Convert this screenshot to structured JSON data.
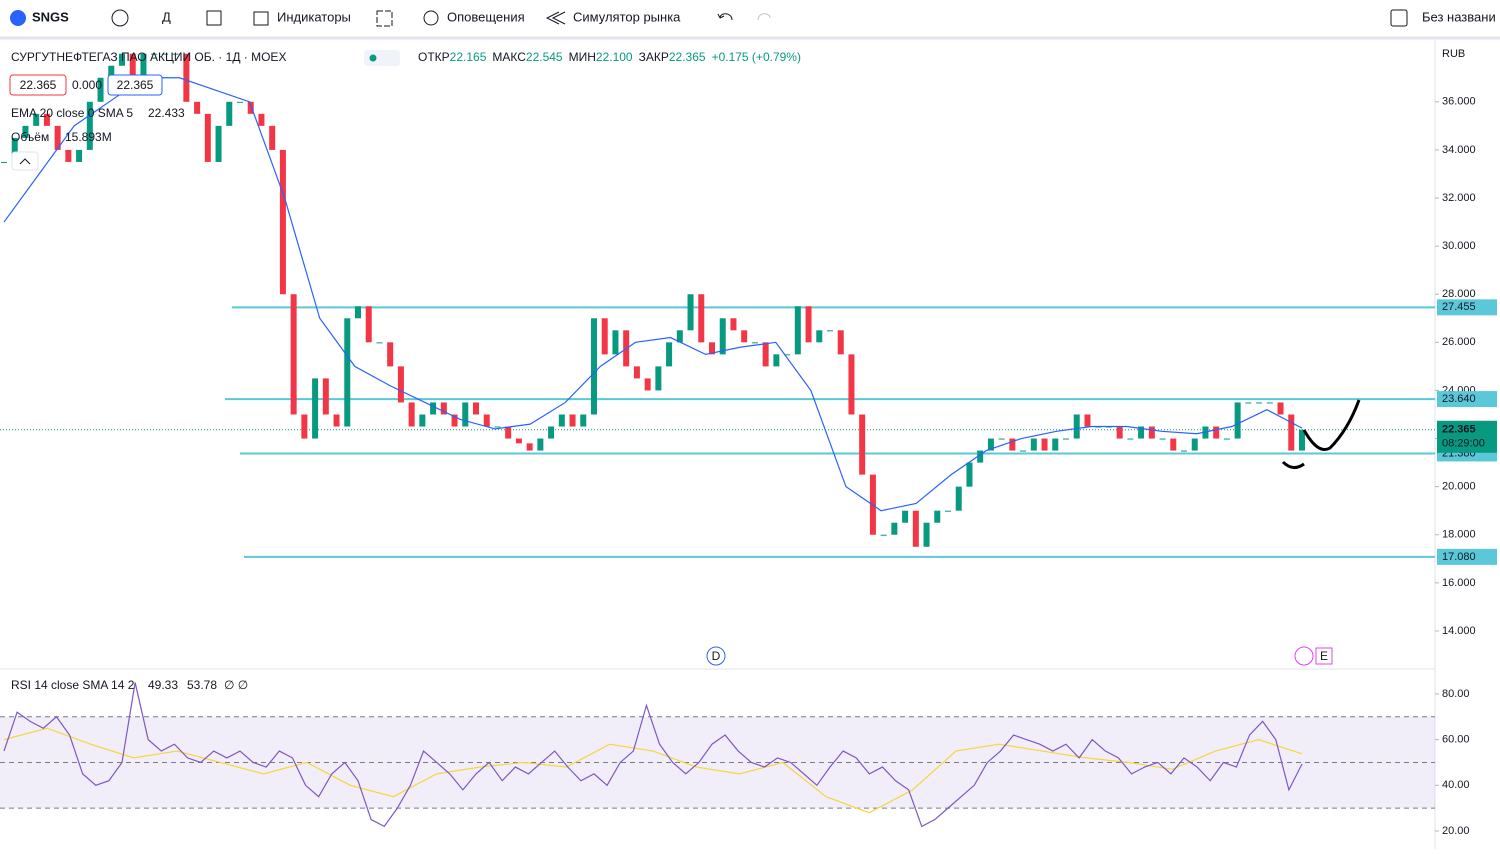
{
  "toolbar": {
    "symbol": "SNGS",
    "interval": "Д",
    "indicators": "Индикаторы",
    "alerts": "Оповещения",
    "replay": "Симулятор рынка",
    "layout": "Без названи"
  },
  "legend": {
    "title": "СУРГУТНЕФТЕГАЗ ПАО АКЦИИ ОБ. · 1Д · MOEX",
    "open_label": "ОТКР",
    "open": "22.165",
    "high_label": "МАКС",
    "high": "22.545",
    "low_label": "МИН",
    "low": "22.100",
    "close_label": "ЗАКР",
    "close": "22.365",
    "change": "+0.175 (+0.79%)",
    "bid": "22.365",
    "spread": "0.000",
    "ask": "22.365",
    "ema_label": "EMA 20 close 0 SMA 5",
    "ema_value": "22.433",
    "volume_label": "Объём",
    "volume_value": "15.893M",
    "rsi_label": "RSI 14 close SMA 14 2",
    "rsi_value": "49.33",
    "rsi_sma_value": "53.78",
    "rsi_extra": "∅ ∅",
    "currency": "RUB",
    "countdown": "08:29:00",
    "dividend_marker": "D",
    "earnings_marker": "E"
  },
  "chart_data": [
    {
      "type": "candlestick",
      "ylim": [
        12.46,
        38.57
      ],
      "yticks": [
        {
          "value": 14,
          "label": "14.000"
        },
        {
          "value": 16,
          "label": "16.000"
        },
        {
          "value": 18,
          "label": "18.000"
        },
        {
          "value": 20,
          "label": "20.000"
        },
        {
          "value": 22,
          "label": "22.000"
        },
        {
          "value": 24,
          "label": "24.000"
        },
        {
          "value": 26,
          "label": "26.000"
        },
        {
          "value": 28,
          "label": "28.000"
        },
        {
          "value": 30,
          "label": "30.000"
        },
        {
          "value": 32,
          "label": "32.000"
        },
        {
          "value": 34,
          "label": "34.000"
        },
        {
          "value": 36,
          "label": "36.000"
        }
      ],
      "close": [
        33.5,
        34.5,
        35,
        35.5,
        35,
        34,
        33.5,
        34,
        36,
        37,
        37.5,
        38,
        37,
        38,
        38,
        38,
        38,
        36,
        35.5,
        33.5,
        35,
        36,
        36,
        35.5,
        35,
        34,
        28,
        23,
        22,
        24.5,
        23,
        22.5,
        27,
        27.5,
        26,
        26,
        25,
        23.5,
        22.5,
        23,
        23.5,
        23,
        22.5,
        23.5,
        23,
        22.5,
        22.5,
        22,
        21.8,
        21.5,
        22,
        22.5,
        23,
        22.5,
        23,
        27,
        25.5,
        26.5,
        25,
        24.5,
        24,
        25,
        26,
        26.5,
        28,
        26,
        25.5,
        27,
        26.5,
        26,
        26,
        25,
        25.5,
        25.5,
        27.5,
        26,
        26.5,
        26.5,
        25.5,
        23,
        20.5,
        18,
        18,
        18.5,
        19,
        17.5,
        18.5,
        19,
        19,
        20,
        21,
        21.5,
        22,
        22,
        21.5,
        21.5,
        22,
        21.5,
        22,
        22,
        23,
        22.5,
        22.5,
        22.5,
        22,
        22,
        22.5,
        22,
        22,
        21.5,
        21.5,
        22,
        22.5,
        22,
        22,
        23.5,
        23.5,
        23.5,
        23.5,
        23,
        21.5,
        22.365
      ],
      "up_color": "#089981",
      "down_color": "#f23645",
      "ema": {
        "name": "EMA 20",
        "color": "#2962ff",
        "values": [
          31,
          33,
          35,
          36,
          37,
          37,
          36.5,
          36,
          32,
          27,
          25,
          24.2,
          23.5,
          22.8,
          22.4,
          22.6,
          23.5,
          25,
          26,
          26.2,
          25.5,
          25.8,
          26,
          24,
          20,
          19,
          19.3,
          20.5,
          21.5,
          22,
          22.3,
          22.5,
          22.5,
          22.3,
          22.2,
          22.5,
          23.2,
          22.433
        ]
      },
      "levels": [
        27.455,
        {
          "value": 23.64,
          "label": "23.640"
        },
        {
          "value": 21.38,
          "label": "21.380"
        },
        {
          "value": 17.08,
          "label": "17.080"
        }
      ],
      "level_color": "#5ac8d8",
      "last_price": 22.365
    },
    {
      "type": "line",
      "ylim": [
        12.1,
        90.5
      ],
      "yticks": [
        {
          "value": 20,
          "label": "20.00"
        },
        {
          "value": 40,
          "label": "40.00"
        },
        {
          "value": 60,
          "label": "60.00"
        },
        {
          "value": 80,
          "label": "80.00"
        }
      ],
      "bands": [
        30,
        50,
        70
      ],
      "series": [
        {
          "name": "RSI",
          "color": "#7e57c2",
          "values": [
            55,
            72,
            68,
            65,
            70,
            62,
            45,
            40,
            42,
            50,
            85,
            60,
            55,
            58,
            52,
            50,
            55,
            52,
            55,
            50,
            48,
            55,
            52,
            40,
            35,
            45,
            50,
            42,
            25,
            22,
            30,
            40,
            55,
            50,
            45,
            38,
            45,
            50,
            42,
            48,
            45,
            50,
            55,
            48,
            42,
            45,
            40,
            50,
            55,
            75,
            58,
            50,
            45,
            50,
            58,
            62,
            55,
            50,
            48,
            52,
            50,
            45,
            40,
            48,
            55,
            52,
            45,
            48,
            42,
            38,
            22,
            25,
            30,
            35,
            40,
            50,
            55,
            62,
            60,
            58,
            55,
            58,
            52,
            60,
            55,
            52,
            45,
            48,
            50,
            45,
            52,
            48,
            42,
            50,
            48,
            62,
            68,
            60,
            38,
            49.33
          ]
        },
        {
          "name": "SMA",
          "color": "#f5d63d",
          "values": [
            60,
            65,
            58,
            52,
            55,
            50,
            45,
            50,
            40,
            35,
            45,
            48,
            50,
            48,
            58,
            55,
            48,
            45,
            50,
            35,
            28,
            38,
            55,
            58,
            55,
            52,
            50,
            47,
            55,
            60,
            53.78
          ]
        }
      ]
    }
  ]
}
